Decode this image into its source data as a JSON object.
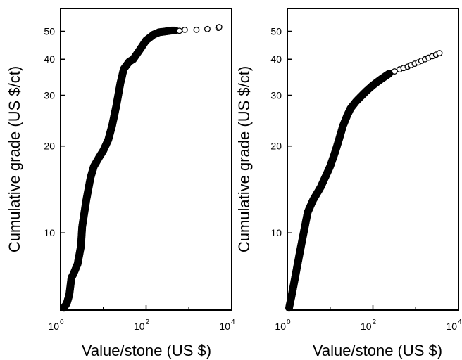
{
  "chart_data": [
    {
      "type": "scatter",
      "xlabel": "Value/stone (US $)",
      "ylabel": "Cumulative grade (US $/ct)",
      "x_scale": "log",
      "y_scale": "log",
      "xlim": [
        1,
        10000
      ],
      "ylim": [
        5.4,
        60
      ],
      "x_ticks": [
        {
          "value": 1,
          "base": "10",
          "exp": "0"
        },
        {
          "value": 100,
          "base": "10",
          "exp": "2"
        },
        {
          "value": 10000,
          "base": "10",
          "exp": "4"
        }
      ],
      "y_ticks": [
        {
          "value": 10,
          "label": "10"
        },
        {
          "value": 20,
          "label": "20"
        },
        {
          "value": 30,
          "label": "30"
        },
        {
          "value": 40,
          "label": "40"
        },
        {
          "value": 50,
          "label": "50"
        }
      ],
      "curve": [
        [
          1.2,
          5.5
        ],
        [
          1.4,
          5.7
        ],
        [
          1.6,
          6.1
        ],
        [
          1.8,
          7.0
        ],
        [
          2.0,
          7.2
        ],
        [
          2.5,
          7.8
        ],
        [
          3.0,
          9.0
        ],
        [
          3.2,
          10.5
        ],
        [
          4.0,
          13.0
        ],
        [
          5.0,
          15.5
        ],
        [
          6.0,
          17.0
        ],
        [
          8.0,
          18.3
        ],
        [
          10.0,
          19.3
        ],
        [
          13.0,
          21.0
        ],
        [
          16.0,
          23.5
        ],
        [
          20.0,
          27.5
        ],
        [
          25.0,
          33.0
        ],
        [
          30.0,
          37.0
        ],
        [
          40.0,
          39.2
        ],
        [
          50.0,
          40.0
        ],
        [
          70.0,
          43.0
        ],
        [
          100.0,
          46.5
        ],
        [
          150.0,
          48.7
        ],
        [
          200.0,
          49.6
        ],
        [
          300.0,
          50.0
        ],
        [
          400.0,
          50.3
        ],
        [
          500.0,
          50.3
        ]
      ],
      "outliers": [
        [
          600,
          50.2
        ],
        [
          800,
          50.6
        ],
        [
          1500,
          50.6
        ],
        [
          2700,
          50.9
        ],
        [
          4900,
          51.4
        ],
        [
          5100,
          51.7
        ]
      ]
    },
    {
      "type": "scatter",
      "xlabel": "Value/stone (US $)",
      "ylabel": "Cumulative grade (US $/ct)",
      "x_scale": "log",
      "y_scale": "log",
      "xlim": [
        1,
        10000
      ],
      "ylim": [
        5.4,
        60
      ],
      "x_ticks": [
        {
          "value": 1,
          "base": "10",
          "exp": "0"
        },
        {
          "value": 100,
          "base": "10",
          "exp": "2"
        },
        {
          "value": 10000,
          "base": "10",
          "exp": "4"
        }
      ],
      "y_ticks": [
        {
          "value": 10,
          "label": "10"
        },
        {
          "value": 20,
          "label": "20"
        },
        {
          "value": 30,
          "label": "30"
        },
        {
          "value": 40,
          "label": "40"
        },
        {
          "value": 50,
          "label": "50"
        }
      ],
      "curve": [
        [
          1.1,
          5.5
        ],
        [
          1.3,
          6.2
        ],
        [
          1.6,
          7.3
        ],
        [
          2.0,
          8.7
        ],
        [
          2.5,
          10.3
        ],
        [
          3.0,
          11.8
        ],
        [
          4.0,
          13.0
        ],
        [
          6.0,
          14.4
        ],
        [
          8.0,
          15.8
        ],
        [
          10.0,
          17.0
        ],
        [
          13.0,
          19.0
        ],
        [
          16.0,
          21.0
        ],
        [
          20.0,
          23.5
        ],
        [
          25.0,
          25.5
        ],
        [
          30.0,
          27.0
        ],
        [
          40.0,
          28.5
        ],
        [
          50.0,
          29.5
        ],
        [
          70.0,
          31.0
        ],
        [
          100.0,
          32.5
        ],
        [
          150.0,
          34.0
        ],
        [
          200.0,
          35.0
        ],
        [
          250.0,
          35.8
        ]
      ],
      "outliers": [
        [
          320,
          36.3
        ],
        [
          420,
          36.9
        ],
        [
          520,
          37.3
        ],
        [
          650,
          37.7
        ],
        [
          780,
          38.2
        ],
        [
          950,
          38.6
        ],
        [
          1150,
          39.0
        ],
        [
          1350,
          39.5
        ],
        [
          1650,
          40.0
        ],
        [
          2000,
          40.5
        ],
        [
          2450,
          41.0
        ],
        [
          3000,
          41.5
        ],
        [
          3600,
          42.0
        ]
      ]
    }
  ]
}
